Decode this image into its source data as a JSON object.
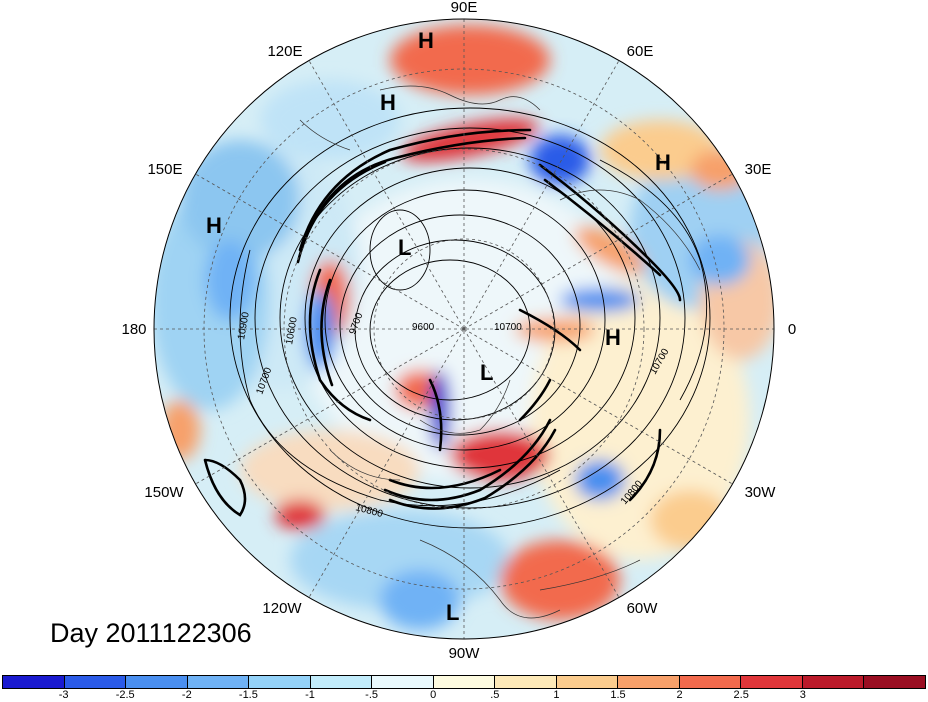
{
  "title": "Day 2011122306",
  "longitude_labels": {
    "lon_90e": "90E",
    "lon_60e": "60E",
    "lon_30e": "30E",
    "lon_0": "0",
    "lon_30w": "30W",
    "lon_60w": "60W",
    "lon_90w": "90W",
    "lon_120w": "120W",
    "lon_150w": "150W",
    "lon_180": "180",
    "lon_150e": "150E",
    "lon_120e": "120E"
  },
  "pressure_centers": [
    {
      "label": "H"
    },
    {
      "label": "H"
    },
    {
      "label": "H"
    },
    {
      "label": "H"
    },
    {
      "label": "H"
    },
    {
      "label": "L"
    },
    {
      "label": "L"
    },
    {
      "label": "L"
    }
  ],
  "contour_labels": [
    "10900",
    "10600",
    "10700",
    "9700",
    "9600",
    "10700",
    "10700",
    "10800",
    "10800"
  ],
  "colorbar": {
    "colors": [
      "#1a1ad0",
      "#2b5be8",
      "#4a8ff0",
      "#6fb2f5",
      "#94d2f8",
      "#c2ecfb",
      "#e9f9fd",
      "#fdfbe0",
      "#fde9b8",
      "#fbcc8e",
      "#f7a06a",
      "#f26a4d",
      "#e0363a",
      "#bb1a2a",
      "#9a0e22"
    ],
    "ticks": [
      "-3",
      "-2.5",
      "-2",
      "-1.5",
      "-1",
      "-.5",
      "0",
      ".5",
      "1",
      "1.5",
      "2",
      "2.5",
      "3"
    ]
  }
}
